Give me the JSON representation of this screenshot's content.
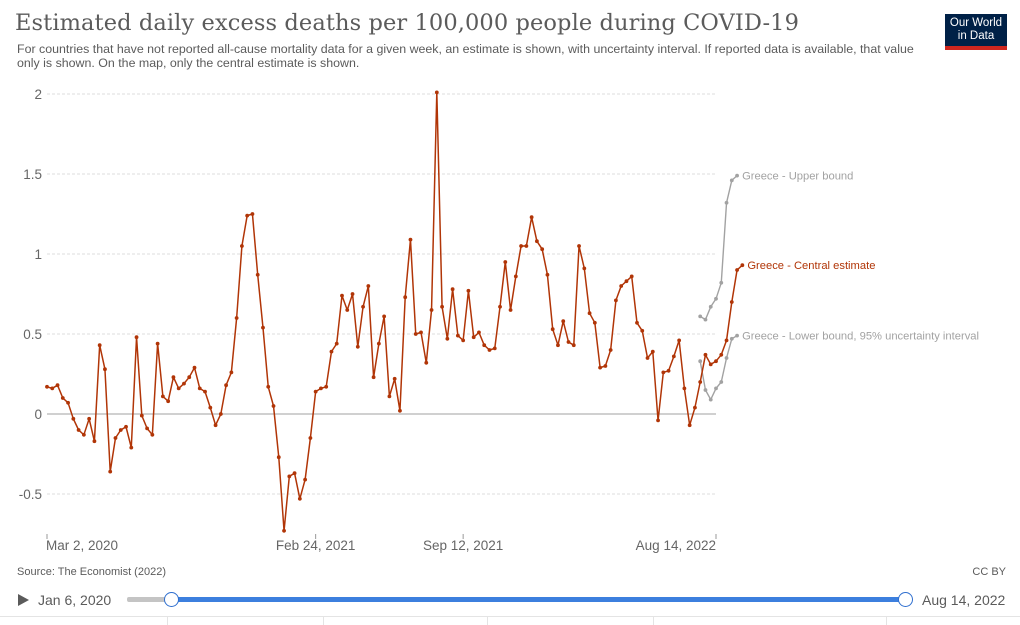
{
  "header": {
    "title": "Estimated daily excess deaths per 100,000 people during COVID-19",
    "subtitle": "For countries that have not reported all-cause mortality data for a given week, an estimate is shown, with uncertainty interval. If reported data is available, that value only is shown. On the map, only the central estimate is shown.",
    "logo_line1": "Our World",
    "logo_line2": "in Data"
  },
  "footer": {
    "source": "Source: The Economist (2022)",
    "license": "CC BY"
  },
  "timeline": {
    "start_label": "Jan 6, 2020",
    "end_label": "Aug 14, 2022"
  },
  "colors": {
    "central": "#b13507",
    "bounds": "#a2a2a2",
    "zero_line": "#a2a2a2",
    "grid": "#dddddd",
    "accent": "#3c7fde"
  },
  "icons": {
    "play": "play-icon"
  },
  "chart_data": {
    "type": "line",
    "title": "Estimated daily excess deaths per 100,000 people during COVID-19",
    "xlabel": "",
    "ylabel": "",
    "ylim": [
      -0.75,
      2
    ],
    "yticks": [
      -0.5,
      0,
      0.5,
      1,
      1.5,
      2
    ],
    "grid": "horizontal dashed",
    "x_domain": [
      "Jan 6, 2020",
      "Aug 14, 2022"
    ],
    "x_tick_labels": [
      {
        "label": "Mar 2, 2020",
        "week": 0
      },
      {
        "label": "Feb 24, 2021",
        "week": 51
      },
      {
        "label": "Sep 12, 2021",
        "week": 79
      },
      {
        "label": "Aug 14, 2022",
        "week": 127
      }
    ],
    "series": [
      {
        "name": "Greece - Central estimate",
        "color": "#b13507",
        "start_week": 0,
        "values": [
          0.17,
          0.16,
          0.18,
          0.1,
          0.07,
          -0.03,
          -0.1,
          -0.13,
          -0.03,
          -0.17,
          0.43,
          0.28,
          -0.36,
          -0.15,
          -0.1,
          -0.08,
          -0.21,
          0.48,
          -0.01,
          -0.09,
          -0.13,
          0.44,
          0.11,
          0.08,
          0.23,
          0.16,
          0.19,
          0.23,
          0.29,
          0.16,
          0.14,
          0.04,
          -0.07,
          0.0,
          0.18,
          0.26,
          0.6,
          1.05,
          1.24,
          1.25,
          0.87,
          0.54,
          0.17,
          0.05,
          -0.27,
          -0.73,
          -0.39,
          -0.37,
          -0.53,
          -0.41,
          -0.15,
          0.14,
          0.16,
          0.17,
          0.39,
          0.44,
          0.74,
          0.65,
          0.75,
          0.42,
          0.67,
          0.8,
          0.23,
          0.44,
          0.61,
          0.11,
          0.22,
          0.02,
          0.73,
          1.09,
          0.5,
          0.51,
          0.32,
          0.65,
          2.01,
          0.67,
          0.47,
          0.78,
          0.49,
          0.46,
          0.77,
          0.48,
          0.51,
          0.43,
          0.4,
          0.41,
          0.67,
          0.95,
          0.65,
          0.86,
          1.05,
          1.05,
          1.23,
          1.08,
          1.03,
          0.87,
          0.53,
          0.43,
          0.58,
          0.45,
          0.43,
          1.05,
          0.91,
          0.63,
          0.57,
          0.29,
          0.3,
          0.4,
          0.71,
          0.8,
          0.83,
          0.86,
          0.57,
          0.52,
          0.35,
          0.39,
          -0.04,
          0.26,
          0.27,
          0.36,
          0.46,
          0.16,
          -0.07,
          0.04,
          0.2,
          0.37,
          0.31,
          0.33,
          0.37,
          0.46,
          0.7,
          0.9,
          0.93
        ]
      },
      {
        "name": "Greece - Upper bound",
        "color": "#a2a2a2",
        "start_week": 124,
        "values": [
          0.61,
          0.59,
          0.67,
          0.72,
          0.82,
          1.32,
          1.46,
          1.49
        ]
      },
      {
        "name": "Greece - Lower bound, 95% uncertainty interval",
        "color": "#a2a2a2",
        "start_week": 124,
        "values": [
          0.33,
          0.15,
          0.09,
          0.16,
          0.2,
          0.35,
          0.47,
          0.49
        ]
      }
    ]
  }
}
